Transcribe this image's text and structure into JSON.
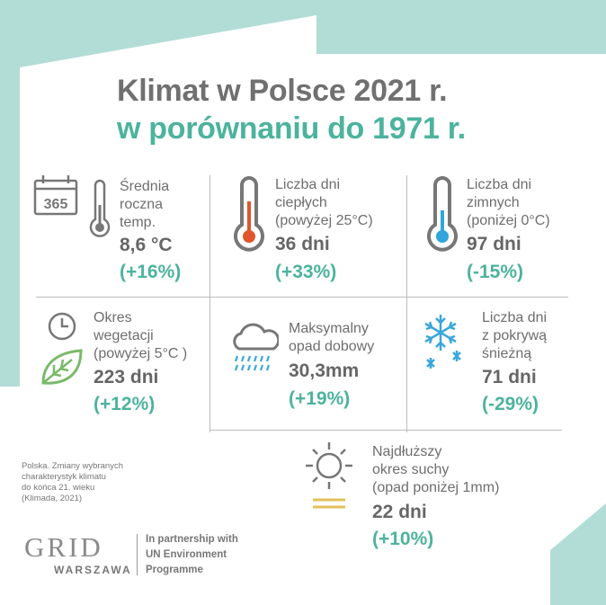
{
  "title": {
    "line1": "Klimat w Polsce 2021 r.",
    "line2": "w porównaniu do 1971 r."
  },
  "stats": [
    {
      "label": "Średnia\nroczna\ntemp.",
      "value": "8,6 °C",
      "change": "(+16%)",
      "icon": "calendar-365-thermometer-icon",
      "calendar_text": "365"
    },
    {
      "label": "Liczba dni\nciepłych\n(powyżej 25°C)",
      "value": "36 dni",
      "change": "(+33%)",
      "icon": "hot-thermometer-icon"
    },
    {
      "label": "Liczba dni\nzimnych\n(poniżej 0°C)",
      "value": "97 dni",
      "change": "(-15%)",
      "icon": "cold-thermometer-icon"
    },
    {
      "label": "Okres\nwegetacji\n(powyżej 5°C )",
      "value": "223 dni",
      "change": "(+12%)",
      "icon": "clock-leaf-icon"
    },
    {
      "label": "Maksymalny\nopad dobowy",
      "value": "30,3mm",
      "change": "(+19%)",
      "icon": "rain-cloud-icon"
    },
    {
      "label": "Liczba dni\nz pokrywą\nśnieżną",
      "value": "71 dni",
      "change": "(-29%)",
      "icon": "snowflake-icon"
    },
    {
      "label": "Najdłuższy\nokres suchy\n(opad poniżej 1mm)",
      "value": "22 dni",
      "change": "(+10%)",
      "icon": "sun-icon"
    }
  ],
  "footnote": "Polska. Zmiany wybranych\ncharakterystyk klimatu\ndo końca 21. wieku\n(Klimada, 2021)",
  "logo": {
    "name": "GRID",
    "sub": "WARSZAWA",
    "partnership": "In partnership with\nUN Environment\nProgramme"
  },
  "colors": {
    "background": "#b1ddd6",
    "panel": "#ffffff",
    "accent": "#4cb39d",
    "text": "#666666",
    "hot": "#e0552b",
    "cold": "#2fa6dc",
    "leaf": "#7bb96a",
    "rain": "#3aa7dc",
    "sun_line": "#e2c05a"
  }
}
